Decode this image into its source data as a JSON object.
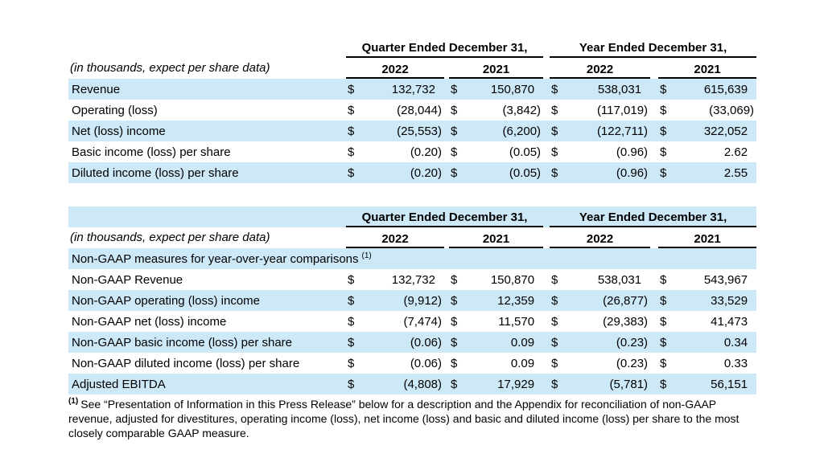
{
  "currency_symbol": "$",
  "colors": {
    "row_highlight": "#cde8f7",
    "text": "#000000",
    "background": "#ffffff",
    "rule": "#000000"
  },
  "table1": {
    "col_groups": [
      "Quarter Ended December 31,",
      "Year Ended December 31,"
    ],
    "caption": "(in thousands, expect per share data)",
    "years": [
      "2022",
      "2021",
      "2022",
      "2021"
    ],
    "rows": [
      {
        "label": "Revenue",
        "values": [
          "132,732",
          "150,870",
          "538,031",
          "615,639"
        ]
      },
      {
        "label": "Operating (loss)",
        "values": [
          "(28,044)",
          "(3,842)",
          "(117,019)",
          "(33,069)"
        ]
      },
      {
        "label": "Net (loss) income",
        "values": [
          "(25,553)",
          "(6,200)",
          "(122,711)",
          "322,052"
        ]
      },
      {
        "label": "Basic income (loss) per share",
        "values": [
          "(0.20)",
          "(0.05)",
          "(0.96)",
          "2.62"
        ]
      },
      {
        "label": "Diluted income (loss) per share",
        "values": [
          "(0.20)",
          "(0.05)",
          "(0.96)",
          "2.55"
        ]
      }
    ]
  },
  "table2": {
    "col_groups": [
      "Quarter Ended December 31,",
      "Year Ended December 31,"
    ],
    "caption": "(in thousands, expect per share data)",
    "years": [
      "2022",
      "2021",
      "2022",
      "2021"
    ],
    "section_heading": "Non-GAAP measures for year-over-year comparisons",
    "section_footnote_ref": "(1)",
    "rows": [
      {
        "label": "Non-GAAP Revenue",
        "values": [
          "132,732",
          "150,870",
          "538,031",
          "543,967"
        ]
      },
      {
        "label": "Non-GAAP operating (loss) income",
        "values": [
          "(9,912)",
          "12,359",
          "(26,877)",
          "33,529"
        ]
      },
      {
        "label": "Non-GAAP net (loss) income",
        "values": [
          "(7,474)",
          "11,570",
          "(29,383)",
          "41,473"
        ]
      },
      {
        "label": "Non-GAAP basic income (loss) per share",
        "values": [
          "(0.06)",
          "0.09",
          "(0.23)",
          "0.34"
        ]
      },
      {
        "label": "Non-GAAP diluted income (loss) per share",
        "values": [
          "(0.06)",
          "0.09",
          "(0.23)",
          "0.33"
        ]
      },
      {
        "label": "Adjusted EBITDA",
        "values": [
          "(4,808)",
          "17,929",
          "(5,781)",
          "56,151"
        ]
      }
    ]
  },
  "footnote": {
    "ref": "(1)",
    "text": "See “Presentation of Information in this Press Release” below for a description and the Appendix for reconciliation of non-GAAP revenue, adjusted for divestitures, operating income (loss), net income (loss) and basic and diluted income (loss) per share to the most closely comparable GAAP measure."
  }
}
